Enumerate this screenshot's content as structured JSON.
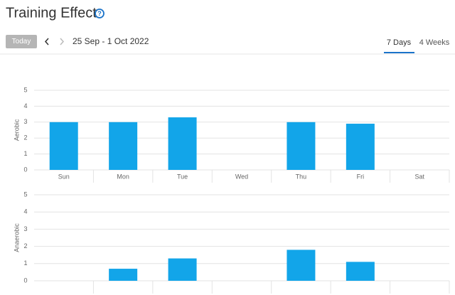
{
  "header": {
    "title": "Training Effect"
  },
  "toolbar": {
    "today": "Today",
    "range": "25 Sep - 1 Oct 2022"
  },
  "tabs": [
    "7 Days",
    "4 Weeks"
  ],
  "chart_data": [
    {
      "type": "bar",
      "y_label": "Aerobic",
      "categories": [
        "Sun",
        "Mon",
        "Tue",
        "Wed",
        "Thu",
        "Fri",
        "Sat"
      ],
      "values": [
        3.0,
        3.0,
        3.3,
        null,
        3.0,
        2.9,
        null
      ],
      "color": "#12a5e9",
      "ylim": [
        0,
        5
      ],
      "yticks": [
        0,
        1,
        2,
        3,
        4,
        5
      ],
      "grid": true
    },
    {
      "type": "bar",
      "y_label": "Anaerobic",
      "values": [
        null,
        0.7,
        1.3,
        null,
        1.8,
        1.1,
        null
      ],
      "color": "#12a5e9",
      "ylim": [
        0,
        5
      ],
      "yticks": [
        0,
        1,
        2,
        3,
        4,
        5
      ],
      "grid": true
    }
  ]
}
